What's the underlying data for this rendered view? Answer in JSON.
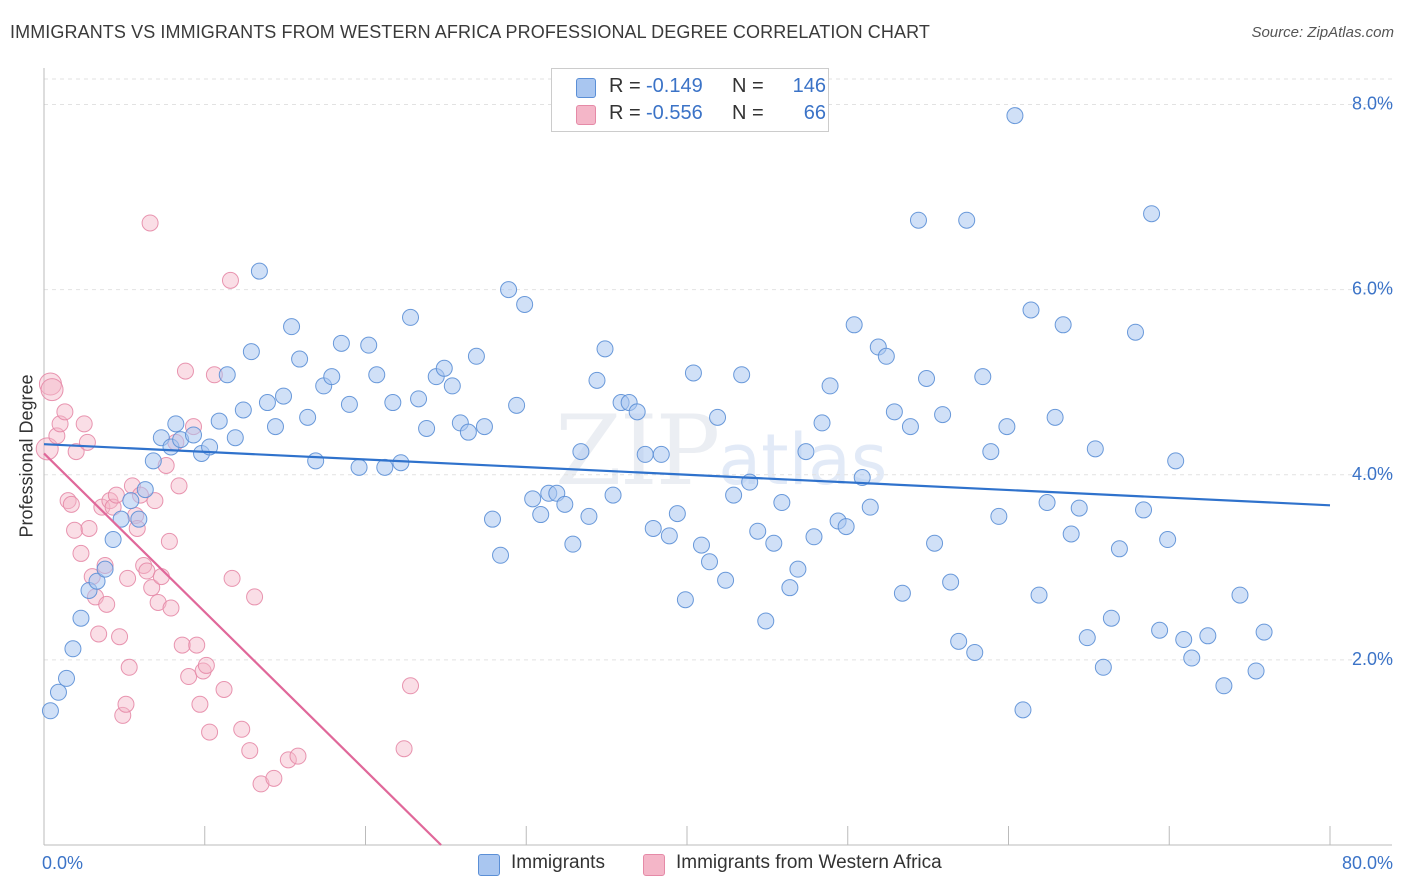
{
  "title": "IMMIGRANTS VS IMMIGRANTS FROM WESTERN AFRICA PROFESSIONAL DEGREE CORRELATION CHART",
  "source": "Source: ZipAtlas.com",
  "watermark": {
    "zip": "ZIP",
    "atlas": "atlas"
  },
  "legend": {
    "rows": [
      {
        "r_label": "R =",
        "r_value": "-0.149",
        "n_label": "N =",
        "n_value": "146",
        "color": "#a9c6f0"
      },
      {
        "r_label": "R =",
        "r_value": "-0.556",
        "n_label": "N =",
        "n_value": "66",
        "color": "#f4b6c8"
      }
    ]
  },
  "bottom_legend": [
    {
      "label": "Immigrants",
      "color": "#a9c6f0"
    },
    {
      "label": "Immigrants from Western Africa",
      "color": "#f4b6c8"
    }
  ],
  "colors": {
    "blue_fill": "#a9c6f0",
    "blue_stroke": "#5b8fd6",
    "blue_line": "#2f72cc",
    "pink_fill": "#f4b6c8",
    "pink_stroke": "#e58aa7",
    "pink_line": "#e0689a",
    "tick_text": "#3b73c7",
    "grid": "#e2e2e2"
  },
  "chart_data": {
    "type": "scatter",
    "title": "IMMIGRANTS VS IMMIGRANTS FROM WESTERN AFRICA PROFESSIONAL DEGREE CORRELATION CHART",
    "xlabel": "",
    "ylabel": "Professional Degree",
    "xlim": [
      0,
      80
    ],
    "ylim": [
      0,
      8.2
    ],
    "x_tick_labels": [
      {
        "value": 0,
        "label": "0.0%"
      },
      {
        "value": 80,
        "label": "80.0%"
      }
    ],
    "y_ticks": [
      {
        "value": 2,
        "label": "2.0%"
      },
      {
        "value": 4,
        "label": "4.0%"
      },
      {
        "value": 6,
        "label": "6.0%"
      },
      {
        "value": 8,
        "label": "8.0%"
      }
    ],
    "grid": true,
    "series": [
      {
        "name": "Immigrants",
        "trend": {
          "x0": 0,
          "y0": 4.33,
          "x1": 80,
          "y1": 3.67
        },
        "points": [
          [
            0.4,
            1.45
          ],
          [
            0.9,
            1.65
          ],
          [
            1.4,
            1.8
          ],
          [
            1.8,
            2.12
          ],
          [
            2.3,
            2.45
          ],
          [
            2.8,
            2.75
          ],
          [
            3.3,
            2.85
          ],
          [
            3.8,
            2.98
          ],
          [
            4.3,
            3.3
          ],
          [
            4.8,
            3.52
          ],
          [
            5.4,
            3.72
          ],
          [
            5.9,
            3.52
          ],
          [
            6.3,
            3.84
          ],
          [
            6.8,
            4.15
          ],
          [
            7.3,
            4.4
          ],
          [
            7.9,
            4.3
          ],
          [
            8.2,
            4.55
          ],
          [
            8.5,
            4.38
          ],
          [
            9.3,
            4.43
          ],
          [
            9.8,
            4.23
          ],
          [
            10.3,
            4.3
          ],
          [
            10.9,
            4.58
          ],
          [
            11.4,
            5.08
          ],
          [
            11.9,
            4.4
          ],
          [
            12.4,
            4.7
          ],
          [
            12.9,
            5.33
          ],
          [
            13.4,
            6.2
          ],
          [
            13.9,
            4.78
          ],
          [
            14.4,
            4.52
          ],
          [
            14.9,
            4.85
          ],
          [
            15.4,
            5.6
          ],
          [
            15.9,
            5.25
          ],
          [
            16.4,
            4.62
          ],
          [
            16.9,
            4.15
          ],
          [
            17.4,
            4.96
          ],
          [
            17.9,
            5.06
          ],
          [
            18.5,
            5.42
          ],
          [
            19.0,
            4.76
          ],
          [
            19.6,
            4.08
          ],
          [
            20.2,
            5.4
          ],
          [
            20.7,
            5.08
          ],
          [
            21.2,
            4.08
          ],
          [
            21.7,
            4.78
          ],
          [
            22.2,
            4.13
          ],
          [
            22.8,
            5.7
          ],
          [
            23.3,
            4.82
          ],
          [
            23.8,
            4.5
          ],
          [
            24.4,
            5.06
          ],
          [
            24.9,
            5.15
          ],
          [
            25.4,
            4.96
          ],
          [
            25.9,
            4.56
          ],
          [
            26.4,
            4.46
          ],
          [
            26.9,
            5.28
          ],
          [
            27.4,
            4.52
          ],
          [
            27.9,
            3.52
          ],
          [
            28.4,
            3.13
          ],
          [
            28.9,
            6.0
          ],
          [
            29.4,
            4.75
          ],
          [
            29.9,
            5.84
          ],
          [
            30.4,
            3.74
          ],
          [
            30.9,
            3.57
          ],
          [
            31.4,
            3.8
          ],
          [
            31.9,
            3.8
          ],
          [
            32.4,
            3.68
          ],
          [
            32.9,
            3.25
          ],
          [
            33.4,
            4.25
          ],
          [
            33.9,
            3.55
          ],
          [
            34.4,
            5.02
          ],
          [
            34.9,
            5.36
          ],
          [
            35.4,
            3.78
          ],
          [
            35.9,
            4.78
          ],
          [
            36.4,
            4.78
          ],
          [
            36.9,
            4.68
          ],
          [
            37.4,
            4.22
          ],
          [
            37.9,
            3.42
          ],
          [
            38.4,
            4.22
          ],
          [
            38.9,
            3.34
          ],
          [
            39.4,
            3.58
          ],
          [
            39.9,
            2.65
          ],
          [
            40.4,
            5.1
          ],
          [
            40.9,
            3.24
          ],
          [
            41.4,
            3.06
          ],
          [
            41.9,
            4.62
          ],
          [
            42.4,
            2.86
          ],
          [
            42.9,
            3.78
          ],
          [
            43.4,
            5.08
          ],
          [
            43.9,
            3.92
          ],
          [
            44.4,
            3.39
          ],
          [
            44.9,
            2.42
          ],
          [
            45.4,
            3.26
          ],
          [
            45.9,
            3.7
          ],
          [
            46.4,
            2.78
          ],
          [
            46.9,
            2.98
          ],
          [
            47.4,
            4.25
          ],
          [
            47.9,
            3.33
          ],
          [
            48.4,
            4.56
          ],
          [
            48.9,
            4.96
          ],
          [
            49.4,
            3.5
          ],
          [
            49.9,
            3.44
          ],
          [
            50.4,
            5.62
          ],
          [
            50.9,
            3.97
          ],
          [
            51.4,
            3.65
          ],
          [
            51.9,
            5.38
          ],
          [
            52.4,
            5.28
          ],
          [
            52.9,
            4.68
          ],
          [
            53.4,
            2.72
          ],
          [
            53.9,
            4.52
          ],
          [
            54.4,
            6.75
          ],
          [
            54.9,
            5.04
          ],
          [
            55.4,
            3.26
          ],
          [
            55.9,
            4.65
          ],
          [
            56.4,
            2.84
          ],
          [
            56.9,
            2.2
          ],
          [
            57.4,
            6.75
          ],
          [
            57.9,
            2.08
          ],
          [
            58.4,
            5.06
          ],
          [
            58.9,
            4.25
          ],
          [
            59.4,
            3.55
          ],
          [
            59.9,
            4.52
          ],
          [
            60.4,
            7.88
          ],
          [
            60.9,
            1.46
          ],
          [
            61.4,
            5.78
          ],
          [
            61.9,
            2.7
          ],
          [
            62.4,
            3.7
          ],
          [
            62.9,
            4.62
          ],
          [
            63.4,
            5.62
          ],
          [
            63.9,
            3.36
          ],
          [
            64.4,
            3.64
          ],
          [
            64.9,
            2.24
          ],
          [
            65.4,
            4.28
          ],
          [
            65.9,
            1.92
          ],
          [
            66.4,
            2.45
          ],
          [
            66.9,
            3.2
          ],
          [
            67.9,
            5.54
          ],
          [
            68.4,
            3.62
          ],
          [
            68.9,
            6.82
          ],
          [
            69.4,
            2.32
          ],
          [
            69.9,
            3.3
          ],
          [
            70.4,
            4.15
          ],
          [
            70.9,
            2.22
          ],
          [
            71.4,
            2.02
          ],
          [
            72.4,
            2.26
          ],
          [
            73.4,
            1.72
          ],
          [
            74.4,
            2.7
          ],
          [
            75.4,
            1.88
          ],
          [
            75.9,
            2.3
          ]
        ]
      },
      {
        "name": "Immigrants from Western Africa",
        "trend": {
          "x0": 0,
          "y0": 4.23,
          "x1": 24.7,
          "y1": 0.0
        },
        "points": [
          [
            0.2,
            4.28
          ],
          [
            0.4,
            4.98
          ],
          [
            0.5,
            4.92
          ],
          [
            0.8,
            4.42
          ],
          [
            1.0,
            4.55
          ],
          [
            1.3,
            4.68
          ],
          [
            1.5,
            3.72
          ],
          [
            1.7,
            3.68
          ],
          [
            1.9,
            3.4
          ],
          [
            2.0,
            4.25
          ],
          [
            2.3,
            3.15
          ],
          [
            2.5,
            4.55
          ],
          [
            2.7,
            4.35
          ],
          [
            2.8,
            3.42
          ],
          [
            3.0,
            2.9
          ],
          [
            3.2,
            2.68
          ],
          [
            3.4,
            2.28
          ],
          [
            3.6,
            3.65
          ],
          [
            3.8,
            3.02
          ],
          [
            3.9,
            2.6
          ],
          [
            4.1,
            3.72
          ],
          [
            4.3,
            3.65
          ],
          [
            4.5,
            3.78
          ],
          [
            4.7,
            2.25
          ],
          [
            4.9,
            1.4
          ],
          [
            5.1,
            1.52
          ],
          [
            5.2,
            2.88
          ],
          [
            5.3,
            1.92
          ],
          [
            5.5,
            3.88
          ],
          [
            5.7,
            3.56
          ],
          [
            5.8,
            3.42
          ],
          [
            6.0,
            3.78
          ],
          [
            6.2,
            3.02
          ],
          [
            6.4,
            2.96
          ],
          [
            6.6,
            6.72
          ],
          [
            6.7,
            2.78
          ],
          [
            6.9,
            3.72
          ],
          [
            7.1,
            2.62
          ],
          [
            7.3,
            2.9
          ],
          [
            7.6,
            4.1
          ],
          [
            7.8,
            3.28
          ],
          [
            7.9,
            2.56
          ],
          [
            8.2,
            4.35
          ],
          [
            8.4,
            3.88
          ],
          [
            8.6,
            2.16
          ],
          [
            8.8,
            5.12
          ],
          [
            9.0,
            1.82
          ],
          [
            9.3,
            4.52
          ],
          [
            9.5,
            2.16
          ],
          [
            9.7,
            1.52
          ],
          [
            9.9,
            1.88
          ],
          [
            10.1,
            1.94
          ],
          [
            10.3,
            1.22
          ],
          [
            10.6,
            5.08
          ],
          [
            11.2,
            1.68
          ],
          [
            11.6,
            6.1
          ],
          [
            11.7,
            2.88
          ],
          [
            12.3,
            1.25
          ],
          [
            12.8,
            1.02
          ],
          [
            13.1,
            2.68
          ],
          [
            13.5,
            0.66
          ],
          [
            14.3,
            0.72
          ],
          [
            15.2,
            0.92
          ],
          [
            15.8,
            0.96
          ],
          [
            22.4,
            1.04
          ],
          [
            22.8,
            1.72
          ]
        ]
      }
    ]
  }
}
